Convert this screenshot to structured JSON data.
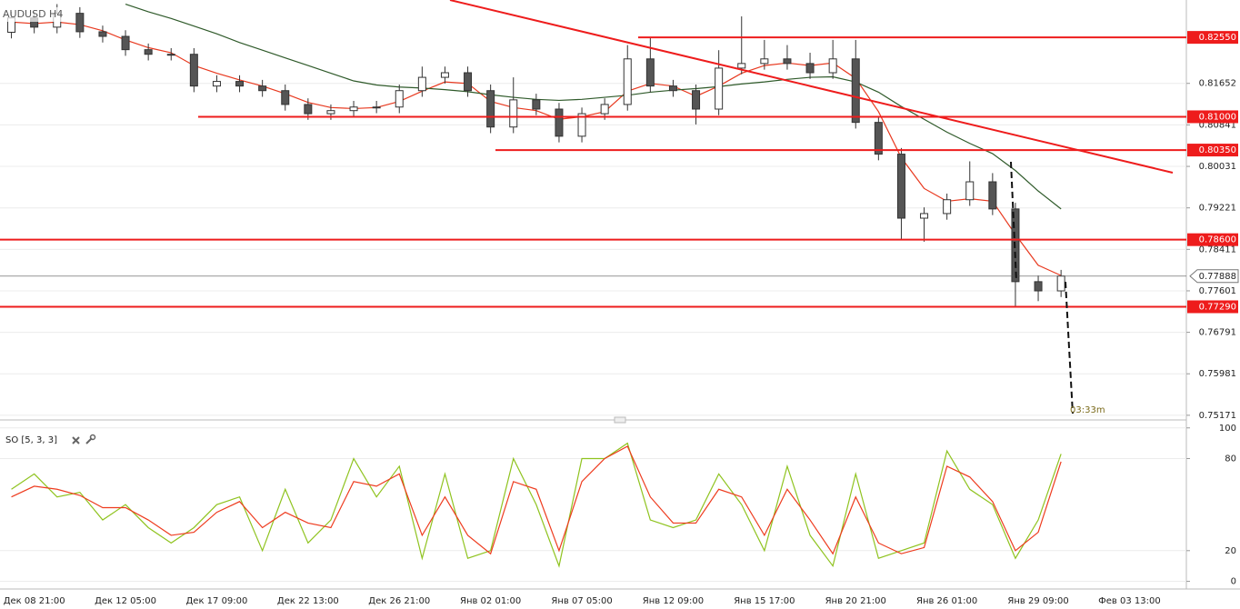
{
  "chart_data": [
    {
      "type": "candlestick",
      "title": "AUDUSD H4",
      "categories": [
        null,
        "Дек 08 21:00",
        null,
        null,
        null,
        "Дек 12 05:00",
        null,
        null,
        null,
        "Дек 17 09:00",
        null,
        null,
        null,
        "Дек 22 13:00",
        null,
        null,
        null,
        "Дек 26 21:00",
        null,
        null,
        null,
        "Янв 02 01:00",
        null,
        null,
        null,
        "Янв 07 05:00",
        null,
        null,
        null,
        "Янв 12 09:00",
        null,
        null,
        null,
        "Янв 15 17:00",
        null,
        null,
        null,
        "Янв 20 21:00",
        null,
        null,
        null,
        "Янв 26 01:00",
        null,
        null,
        null,
        "Янв 29 09:00",
        null,
        null,
        null,
        "Фев 03 13:00",
        null,
        null
      ],
      "open": [
        0.8265,
        0.8293,
        0.8275,
        0.8302,
        0.8266,
        0.8257,
        0.8231,
        0.8222,
        0.8222,
        0.816,
        0.8169,
        0.816,
        0.8151,
        0.8124,
        0.8106,
        0.8112,
        0.8119,
        0.8119,
        0.8151,
        0.8177,
        0.8186,
        0.8151,
        0.808,
        0.8133,
        0.8115,
        0.8062,
        0.8106,
        0.8124,
        0.8213,
        0.816,
        0.8151,
        0.8115,
        0.8195,
        0.8204,
        0.8213,
        0.8204,
        0.8186,
        0.8213,
        0.8089,
        0.8027,
        0.7902,
        0.7911,
        0.7938,
        0.7973,
        0.792,
        0.7778,
        0.776,
        null,
        null,
        null,
        null,
        null
      ],
      "high": [
        0.8305,
        0.8305,
        0.832,
        0.8314,
        0.8278,
        0.8269,
        0.8243,
        0.8234,
        0.8234,
        0.8181,
        0.8181,
        0.8172,
        0.8163,
        0.8136,
        0.8124,
        0.8131,
        0.8131,
        0.8163,
        0.8198,
        0.8198,
        0.8198,
        0.8163,
        0.8177,
        0.8145,
        0.8127,
        0.8118,
        0.8136,
        0.824,
        0.8255,
        0.8172,
        0.8163,
        0.823,
        0.8296,
        0.825,
        0.824,
        0.8225,
        0.825,
        0.825,
        0.8101,
        0.8039,
        0.7923,
        0.795,
        0.8013,
        0.799,
        0.7932,
        0.779,
        0.7801,
        null,
        null,
        null,
        null,
        null
      ],
      "low": [
        0.8253,
        0.8263,
        0.8263,
        0.8254,
        0.8245,
        0.8219,
        0.821,
        0.821,
        0.8148,
        0.8148,
        0.8148,
        0.8139,
        0.8112,
        0.8094,
        0.8094,
        0.81,
        0.8107,
        0.8107,
        0.8139,
        0.8165,
        0.8139,
        0.8068,
        0.8068,
        0.8103,
        0.805,
        0.805,
        0.8094,
        0.8112,
        0.8148,
        0.8139,
        0.8085,
        0.8103,
        0.8183,
        0.8192,
        0.8192,
        0.8174,
        0.8174,
        0.8077,
        0.8015,
        0.786,
        0.7856,
        0.7899,
        0.7926,
        0.7908,
        0.7729,
        0.774,
        0.7748,
        null,
        null,
        null,
        null,
        null
      ],
      "close": [
        0.8293,
        0.8275,
        0.8302,
        0.8266,
        0.8257,
        0.8231,
        0.8222,
        0.8222,
        0.816,
        0.8169,
        0.816,
        0.8151,
        0.8124,
        0.8106,
        0.8112,
        0.8119,
        0.8119,
        0.8151,
        0.8177,
        0.8186,
        0.8151,
        0.808,
        0.8133,
        0.8115,
        0.8062,
        0.8106,
        0.8124,
        0.8213,
        0.816,
        0.8151,
        0.8115,
        0.8195,
        0.8204,
        0.8213,
        0.8204,
        0.8186,
        0.8213,
        0.8089,
        0.8027,
        0.7902,
        0.7911,
        0.7938,
        0.7973,
        0.792,
        0.7778,
        0.776,
        0.7789,
        null,
        null,
        null,
        null,
        null
      ],
      "series": [
        {
          "color": "#e8391f",
          "values": [
            0.8285,
            0.8282,
            0.8285,
            0.828,
            0.8268,
            0.825,
            0.8235,
            0.8225,
            0.82,
            0.8185,
            0.8172,
            0.816,
            0.8145,
            0.8128,
            0.8118,
            0.8116,
            0.8118,
            0.813,
            0.815,
            0.8168,
            0.8165,
            0.813,
            0.8118,
            0.8112,
            0.8095,
            0.81,
            0.811,
            0.815,
            0.8165,
            0.816,
            0.814,
            0.816,
            0.8185,
            0.82,
            0.8205,
            0.82,
            0.8205,
            0.8175,
            0.811,
            0.802,
            0.796,
            0.7935,
            0.794,
            0.7935,
            0.787,
            0.781,
            0.779,
            null,
            null,
            null,
            null,
            null
          ]
        },
        {
          "color": "#2f5a2a",
          "values": [
            null,
            null,
            null,
            null,
            null,
            0.832,
            0.8305,
            0.8292,
            0.8277,
            0.8262,
            0.8245,
            0.823,
            0.8215,
            0.82,
            0.8185,
            0.817,
            0.8162,
            0.8158,
            0.8156,
            0.8153,
            0.8149,
            0.8143,
            0.8138,
            0.8134,
            0.8132,
            0.8134,
            0.8138,
            0.8142,
            0.8148,
            0.8152,
            0.8155,
            0.8159,
            0.8164,
            0.8168,
            0.8173,
            0.8177,
            0.8178,
            0.8168,
            0.8148,
            0.812,
            0.8095,
            0.807,
            0.8048,
            0.8028,
            0.7995,
            0.7955,
            0.792,
            null,
            null,
            null,
            null,
            null
          ]
        }
      ],
      "ylim": [
        0.7508,
        0.8328
      ],
      "yticks": [
        0.81652,
        0.80841,
        0.80031,
        0.79221,
        0.78411,
        0.77601,
        0.76791,
        0.75981,
        0.75171
      ],
      "levels": [
        {
          "value": 0.8255,
          "label": "0.82550"
        },
        {
          "value": 0.81,
          "label": "0.81000"
        },
        {
          "value": 0.8035,
          "label": "0.80350"
        },
        {
          "value": 0.786,
          "label": "0.78600"
        },
        {
          "value": 0.7729,
          "label": "0.77290"
        }
      ],
      "level_color": "#ee1c1c",
      "last_price": 0.77888,
      "timer": "03:33m"
    },
    {
      "type": "line",
      "title": "SO [5, 3, 3]",
      "series": [
        {
          "color": "#8fc31f",
          "values": [
            60,
            70,
            55,
            58,
            40,
            50,
            35,
            25,
            35,
            50,
            55,
            20,
            60,
            25,
            40,
            80,
            55,
            75,
            15,
            70,
            15,
            20,
            80,
            50,
            10,
            80,
            80,
            90,
            40,
            35,
            40,
            70,
            50,
            20,
            75,
            30,
            10,
            70,
            15,
            20,
            25,
            85,
            60,
            50,
            15,
            40,
            83,
            null,
            null,
            null,
            null,
            null
          ]
        },
        {
          "color": "#ee3b1e",
          "values": [
            55,
            62,
            60,
            56,
            48,
            48,
            40,
            30,
            32,
            45,
            52,
            35,
            45,
            38,
            35,
            65,
            62,
            70,
            30,
            55,
            30,
            18,
            65,
            60,
            20,
            65,
            80,
            88,
            55,
            38,
            38,
            60,
            55,
            30,
            60,
            40,
            18,
            55,
            25,
            18,
            22,
            75,
            68,
            52,
            20,
            32,
            78,
            null,
            null,
            null,
            null,
            null
          ]
        }
      ],
      "ylim": [
        -5,
        104
      ],
      "yticks": [
        0,
        20,
        80,
        100
      ]
    }
  ]
}
